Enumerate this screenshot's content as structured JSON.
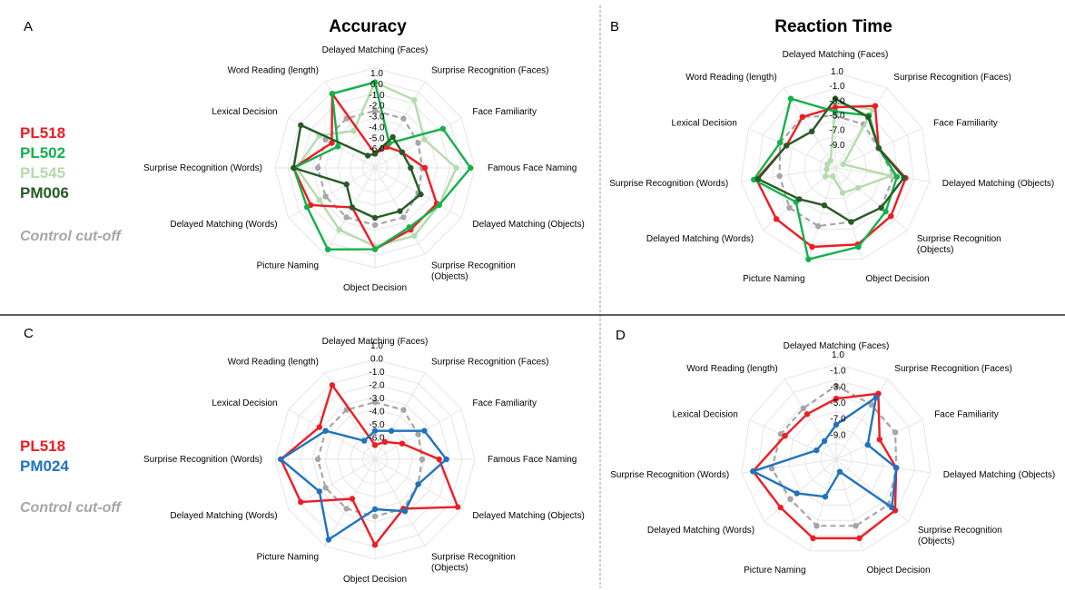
{
  "legend_sets": [
    {
      "patients": [
        {
          "name": "PL518",
          "color": "#ee1c24"
        },
        {
          "name": "PL502",
          "color": "#13b14b"
        },
        {
          "name": "PL545",
          "color": "#b4dcab"
        },
        {
          "name": "PM006",
          "color": "#265b25"
        }
      ],
      "cutoff_label": "Control cut-off",
      "cutoff_color": "#a6a6a6"
    },
    {
      "patients": [
        {
          "name": "PL518",
          "color": "#ee1c24"
        },
        {
          "name": "PM024",
          "color": "#1f73bd"
        }
      ],
      "cutoff_label": "Control cut-off",
      "cutoff_color": "#a6a6a6"
    }
  ],
  "chart_data": [
    {
      "panel": "A",
      "title": "Accuracy",
      "type": "radar",
      "axes": [
        "Delayed Matching (Faces)",
        "Surprise Recognition (Faces)",
        "Face Familiarity",
        "Famous Face Naming",
        "Delayed Matching (Objects)",
        "Surprise Recognition\n(Objects)",
        "Object Decision",
        "Picture Naming",
        "Delayed Matching (Words)",
        "Surprise Recognition (Words)",
        "Lexical Decision",
        "Word Reading (length)"
      ],
      "ticks": [
        "1.0",
        "0.0",
        "-1.0",
        "-2.0",
        "-3.0",
        "-4.0",
        "-5.0",
        "-6.0"
      ],
      "range": [
        -6,
        1
      ],
      "series": [
        {
          "name": "Control cut-off",
          "color": "#a6a6a6",
          "dashed": true,
          "values": [
            -2.0,
            -2.0,
            -2.5,
            -2.7,
            -2.5,
            -2.0,
            -2.0,
            -2.0,
            -2.0,
            -2.0,
            -2.0,
            -2.0
          ]
        },
        {
          "name": "PL545",
          "color": "#b4dcab",
          "values": [
            0.0,
            -0.5,
            -2.0,
            -0.3,
            -0.8,
            -0.5,
            -0.5,
            -1.0,
            -1.5,
            -0.5,
            -1.5,
            -3.0
          ]
        },
        {
          "name": "PL518",
          "color": "#ee1c24",
          "values": [
            -5.0,
            -4.3,
            -3.8,
            -2.5,
            -1.0,
            -1.0,
            -0.3,
            -2.8,
            -0.8,
            -0.3,
            -2.5,
            0.0
          ]
        },
        {
          "name": "PL502",
          "color": "#13b14b",
          "values": [
            0.0,
            -4.0,
            -0.5,
            0.7,
            -0.8,
            -1.2,
            -0.3,
            0.6,
            -0.5,
            -0.3,
            -3.0,
            0.0
          ]
        },
        {
          "name": "PM006",
          "color": "#265b25",
          "values": [
            -5.0,
            -3.5,
            -3.8,
            -3.5,
            -2.3,
            -2.5,
            -2.5,
            -2.8,
            -3.7,
            -0.3,
            0.0,
            -5.0
          ]
        }
      ]
    },
    {
      "panel": "B",
      "title": "Reaction Time",
      "type": "radar",
      "axes": [
        "Delayed Matching (Faces)",
        "Surprise Recognition (Faces)",
        "Face Familiarity",
        "Delayed Matching (Objects)",
        "Surprise Recognition\n(Objects)",
        "Object Decision",
        "Picture Naming",
        "Delayed Matching (Words)",
        "Surprise Recognition (Words)",
        "Lexical Decision",
        "Word Reading (length)"
      ],
      "ticks": [
        "1.0",
        "-1.0",
        "-3.0",
        "-5.0",
        "-7.0",
        "-9.0"
      ],
      "range": [
        -10,
        1
      ],
      "series": [
        {
          "name": "Control cut-off",
          "color": "#a6a6a6",
          "dashed": true,
          "values": [
            -4.0,
            -4.0,
            -4.5,
            -3.2,
            -3.0,
            -3.5,
            -3.0,
            -3.0,
            -3.5,
            -3.0,
            -3.0
          ]
        },
        {
          "name": "PL545",
          "color": "#b4dcab",
          "values": [
            -2.5,
            -2.0,
            -9.0,
            -3.5,
            -6.5,
            -7.0,
            -9.0,
            -8.5,
            -9.0,
            -9.0,
            -9.0
          ]
        },
        {
          "name": "PL518",
          "color": "#ee1c24",
          "values": [
            -3.0,
            -1.5,
            -4.5,
            -1.8,
            -1.5,
            -0.8,
            -0.5,
            -1.0,
            -0.8,
            -3.8,
            -3.0
          ]
        },
        {
          "name": "PL502",
          "color": "#13b14b",
          "values": [
            -3.5,
            -2.8,
            -4.5,
            -2.8,
            -2.3,
            -0.5,
            1.0,
            -4.0,
            -0.5,
            -3.0,
            -0.5
          ]
        },
        {
          "name": "PM006",
          "color": "#265b25",
          "values": [
            -2.0,
            -3.0,
            -4.5,
            -2.0,
            -3.0,
            -3.5,
            -5.5,
            -4.5,
            -1.0,
            -3.8,
            -5.0
          ]
        }
      ]
    },
    {
      "panel": "C",
      "type": "radar",
      "axes": [
        "Delayed Matching (Faces)",
        "Surprise Recognition (Faces)",
        "Face Familiarity",
        "Famous Face Naming",
        "Delayed Matching (Objects)",
        "Surprise Recognition\n(Objects)",
        "Object Decision",
        "Picture Naming",
        "Delayed Matching (Words)",
        "Surprise Recognition (Words)",
        "Lexical Decision",
        "Word Reading (length)"
      ],
      "ticks": [
        "1.0",
        "0.0",
        "-1.0",
        "-2.0",
        "-3.0",
        "-4.0",
        "-5.0",
        "-6.0"
      ],
      "range": [
        -6,
        1
      ],
      "series": [
        {
          "name": "Control cut-off",
          "color": "#a6a6a6",
          "dashed": true,
          "values": [
            -2.0,
            -2.0,
            -2.5,
            -2.7,
            -2.5,
            -2.0,
            -2.0,
            -2.0,
            -2.0,
            -2.0,
            -2.0,
            -2.0
          ]
        },
        {
          "name": "PL518",
          "color": "#ee1c24",
          "values": [
            -5.0,
            -4.6,
            -3.8,
            -1.5,
            0.7,
            -2.0,
            0.0,
            -2.8,
            0.0,
            0.6,
            -1.5,
            0.0
          ]
        },
        {
          "name": "PM024",
          "color": "#1f73bd",
          "values": [
            -4.0,
            -3.7,
            -2.0,
            -1.0,
            -2.5,
            -1.8,
            -2.5,
            0.5,
            -1.5,
            0.6,
            -2.0,
            -4.5
          ]
        }
      ]
    },
    {
      "panel": "D",
      "type": "radar",
      "axes": [
        "Delayed Matching (Faces)",
        "Surprise Recognition (Faces)",
        "Face Familiarity",
        "Delayed Matching (Objects)",
        "Surprise Recognition\n(Objects)",
        "Object Decision",
        "Picture Naming",
        "Delayed Matching (Words)",
        "Surprise Recognition (Words)",
        "Lexical Decision",
        "Word Reading (length)"
      ],
      "ticks": [
        "1.0",
        "-1.0",
        "-3.0",
        "-5.0",
        "-7.0",
        "-9.0"
      ],
      "range": [
        -10,
        1
      ],
      "series": [
        {
          "name": "Control cut-off",
          "color": "#a6a6a6",
          "dashed": true,
          "values": [
            -1.5,
            -2.5,
            -2.5,
            -3.0,
            -2.0,
            -2.0,
            -2.0,
            -3.0,
            -2.5,
            -3.0,
            -3.0
          ]
        },
        {
          "name": "PL518",
          "color": "#ee1c24",
          "values": [
            -3.0,
            -1.0,
            -4.5,
            -3.0,
            -1.0,
            -0.5,
            -0.5,
            -1.5,
            -0.3,
            -3.5,
            -3.8
          ]
        },
        {
          "name": "PM024",
          "color": "#1f73bd",
          "values": [
            -6.0,
            -1.5,
            -6.0,
            -3.0,
            -1.5,
            -8.5,
            -5.5,
            -4.0,
            -0.3,
            -7.5,
            -7.5
          ]
        }
      ]
    }
  ]
}
